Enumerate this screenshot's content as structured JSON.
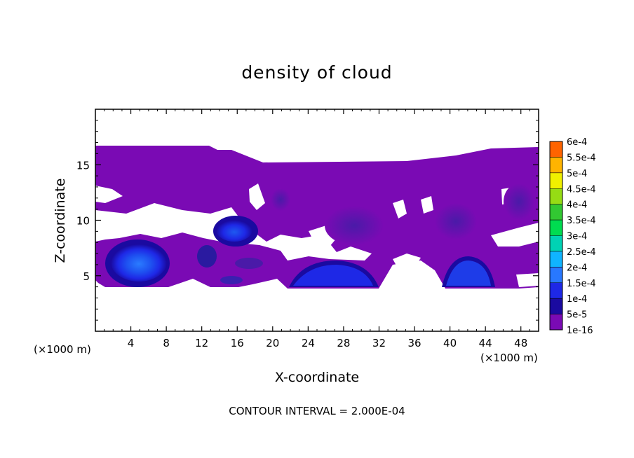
{
  "chart_data": {
    "type": "heatmap",
    "title": "density of cloud",
    "xlabel": "X-coordinate",
    "ylabel": "Z-coordinate",
    "x_unit": "(×1000 m)",
    "z_unit": "(×1000 m)",
    "xlim": [
      0,
      50
    ],
    "ylim": [
      0,
      20
    ],
    "x_ticks": [
      4,
      8,
      12,
      16,
      20,
      24,
      28,
      32,
      36,
      40,
      44,
      48
    ],
    "y_ticks": [
      5,
      10,
      15
    ],
    "footer": "CONTOUR INTERVAL = 2.000E-04",
    "colorbar": {
      "levels": [
        "1e-16",
        "5e-5",
        "1e-4",
        "1.5e-4",
        "2e-4",
        "2.5e-4",
        "3e-4",
        "3.5e-4",
        "4e-4",
        "4.5e-4",
        "5e-4",
        "5.5e-4",
        "6e-4"
      ],
      "colors": [
        "#7a0ab4",
        "#1a0aa0",
        "#1e28e6",
        "#2878ff",
        "#10b4ff",
        "#00d2b4",
        "#00dc50",
        "#32c832",
        "#96dc14",
        "#f0f000",
        "#ffb400",
        "#ff6400",
        "#ff1e1e",
        "#ff8c8c"
      ]
    },
    "cloud_layer": {
      "x_range": [
        0,
        50
      ],
      "z_range": [
        4,
        16.5
      ]
    },
    "cores": [
      {
        "x_center": 5.5,
        "z_center": 6.0,
        "level": "1.5e-4"
      },
      {
        "x_center": 16.0,
        "z_center": 9.5,
        "level": "1.5e-4"
      },
      {
        "x_center": 26.0,
        "z_center": 5.0,
        "level": "1e-4"
      },
      {
        "x_center": 42.0,
        "z_center": 5.2,
        "level": "1e-4"
      }
    ]
  }
}
